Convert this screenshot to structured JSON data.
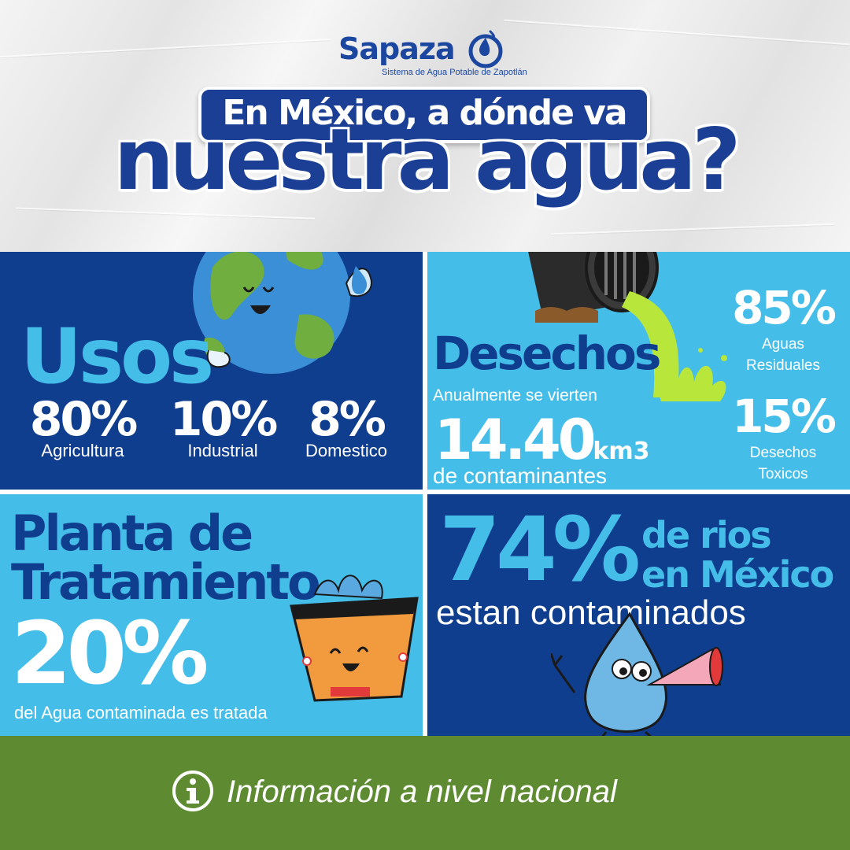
{
  "logo": {
    "name": "Sapaza",
    "subtitle": "Sistema de Agua Potable de Zapotlán"
  },
  "title": {
    "line1": "En México, a dónde va",
    "line2": "nuestra agua?"
  },
  "usos": {
    "heading": "Usos",
    "stats": [
      {
        "value": "80%",
        "label": "Agricultura"
      },
      {
        "value": "10%",
        "label": "Industrial"
      },
      {
        "value": "8%",
        "label": "Domestico"
      }
    ]
  },
  "desechos": {
    "heading": "Desechos",
    "intro": "Anualmente se vierten",
    "amount": "14.40",
    "unit": "km3",
    "caption": "de contaminantes",
    "breakdown": [
      {
        "value": "85%",
        "label_line1": "Aguas",
        "label_line2": "Residuales"
      },
      {
        "value": "15%",
        "label_line1": "Desechos",
        "label_line2": "Toxicos"
      }
    ]
  },
  "planta": {
    "heading_line1": "Planta de",
    "heading_line2": "Tratamiento",
    "value": "20%",
    "caption": "del Agua contaminada es tratada"
  },
  "rios": {
    "value": "74%",
    "label_line1": "de rios",
    "label_line2": "en México",
    "caption": "estan contaminados"
  },
  "footer": {
    "text": "Información a nivel nacional",
    "icon": "info-icon"
  },
  "colors": {
    "dark_blue": "#103e8f",
    "light_blue": "#45bde9",
    "green": "#5e8b31",
    "title_blue": "#1c3f96"
  }
}
